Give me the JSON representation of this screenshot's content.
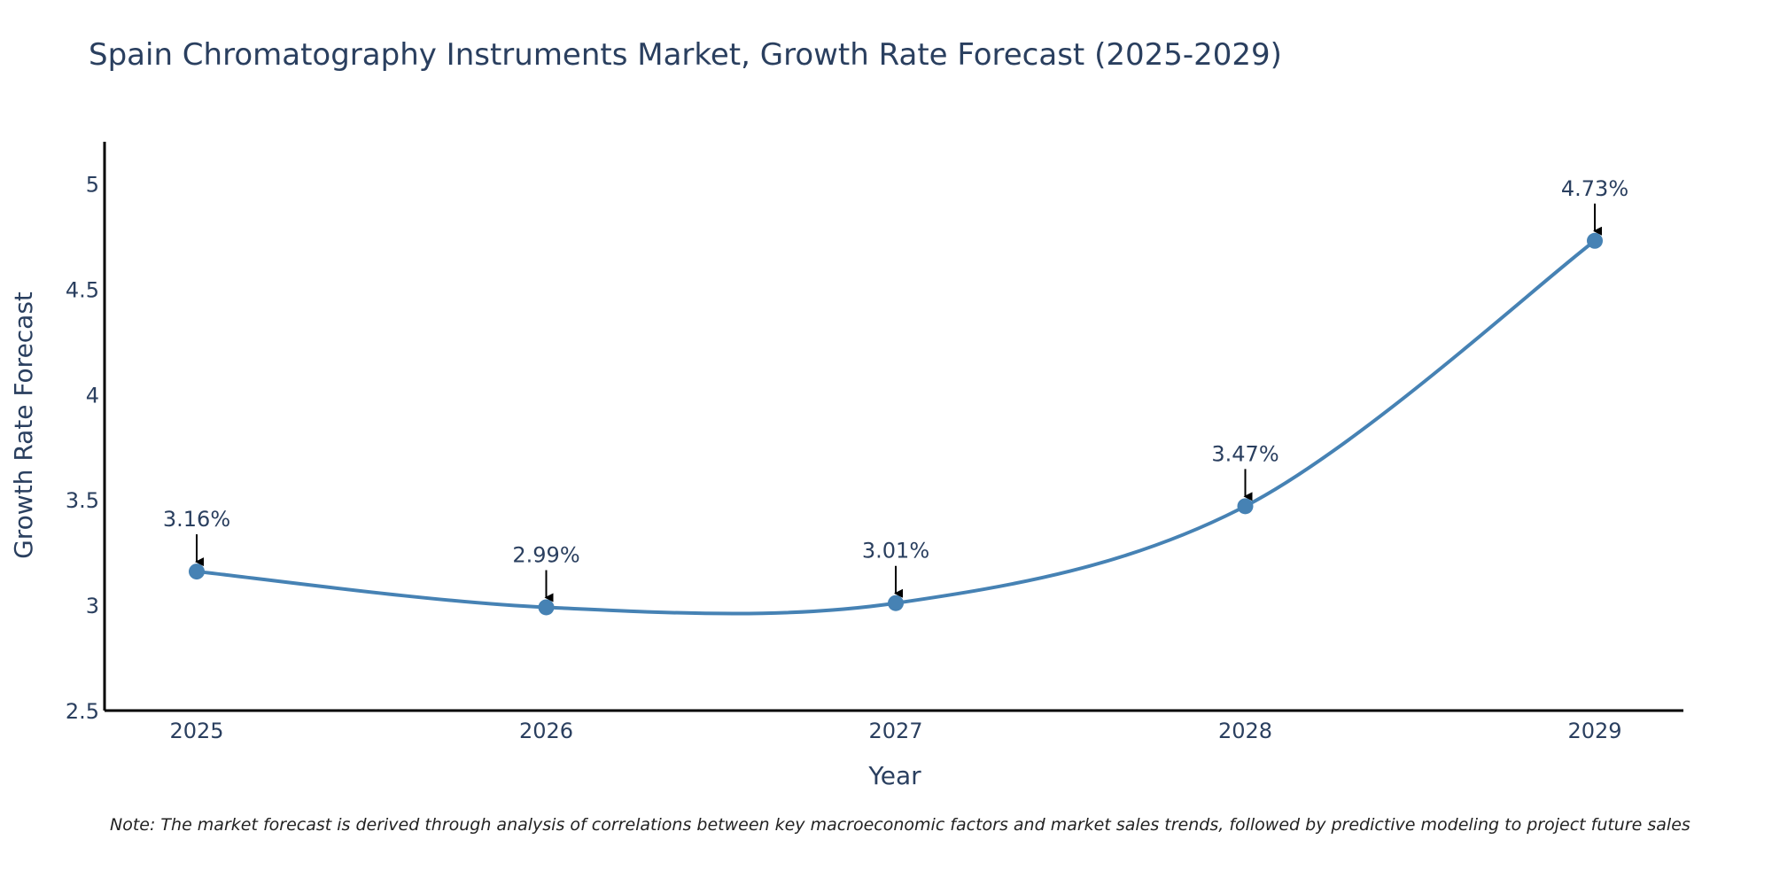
{
  "chart_data": {
    "type": "line",
    "title": "Spain Chromatography Instruments Market, Growth Rate Forecast (2025-2029)",
    "xlabel": "Year",
    "ylabel": "Growth Rate Forecast",
    "categories": [
      "2025",
      "2026",
      "2027",
      "2028",
      "2029"
    ],
    "series": [
      {
        "name": "Growth Rate Forecast",
        "values": [
          3.16,
          2.99,
          3.01,
          3.47,
          4.73
        ],
        "color": "#4682B4"
      }
    ],
    "annotations": [
      "3.16%",
      "2.99%",
      "3.01%",
      "3.47%",
      "4.73%"
    ],
    "ylim": [
      2.5,
      5.2
    ],
    "yticks": [
      2.5,
      3,
      3.5,
      4,
      4.5,
      5
    ],
    "ytick_labels": [
      "2.5",
      "3",
      "3.5",
      "4",
      "4.5",
      "5"
    ],
    "grid": false,
    "legend": "none",
    "note": "Note: The market forecast is derived through analysis of correlations between key macroeconomic factors and market sales trends, followed by predictive modeling to project future sales"
  },
  "colors": {
    "line": "#4682B4",
    "text": "#2a3f5f",
    "axis": "#000000"
  }
}
